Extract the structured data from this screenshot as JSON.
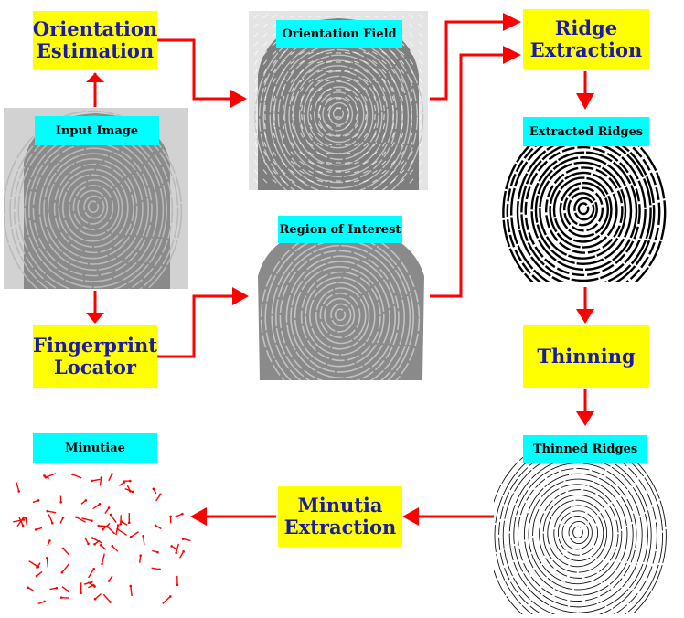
{
  "boxes": {
    "orientation_estimation": "Orientation\nEstimation",
    "fingerprint_locator": "Fingerprint\nLocator",
    "ridge_extraction": "Ridge\nExtraction",
    "thinning": "Thinning",
    "minutia_extraction": "Minutia\nExtraction"
  },
  "labels": {
    "input_image": "Input Image",
    "orientation_field": "Orientation Field",
    "region_of_interest": "Region of Interest",
    "extracted_ridges": "Extracted Ridges",
    "thinned_ridges": "Thinned Ridges",
    "minutiae": "Minutiae"
  },
  "colors": {
    "process_box": "#ffff00",
    "process_text": "#1a1aa6",
    "label_box": "#00ffff",
    "arrow": "#ff0000"
  }
}
